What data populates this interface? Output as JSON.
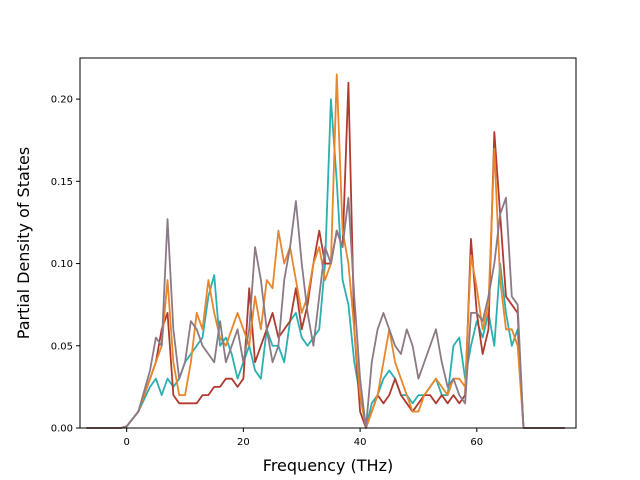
{
  "chart_data": {
    "type": "line",
    "title": "",
    "xlabel": "Frequency (THz)",
    "ylabel": "Partial Density of States",
    "xlim": [
      -8,
      77
    ],
    "ylim": [
      0,
      0.225
    ],
    "xticks": [
      0,
      20,
      40,
      60
    ],
    "yticks": [
      0.0,
      0.05,
      0.1,
      0.15,
      0.2
    ],
    "ytick_labels": [
      "0.00",
      "0.05",
      "0.10",
      "0.15",
      "0.20"
    ],
    "grid": false,
    "legend": "none",
    "series": [
      {
        "color": "#2ab0b0",
        "x": [
          -6.8,
          -1,
          0,
          2,
          4,
          5,
          6,
          7,
          8,
          9,
          10,
          11,
          12,
          13,
          14,
          15,
          16,
          17,
          18,
          19,
          20,
          21,
          22,
          23,
          24,
          25,
          26,
          27,
          28,
          29,
          30,
          31,
          32,
          33,
          34,
          35,
          36,
          37,
          38,
          39,
          40,
          41,
          42,
          43,
          44,
          45,
          46,
          47,
          48,
          49,
          50,
          51,
          52,
          53,
          54,
          55,
          56,
          57,
          58,
          59,
          60,
          61,
          62,
          63,
          64,
          65,
          66,
          67,
          68,
          70,
          75
        ],
        "y": [
          0,
          0,
          0.001,
          0.01,
          0.025,
          0.03,
          0.02,
          0.03,
          0.025,
          0.03,
          0.04,
          0.045,
          0.05,
          0.055,
          0.08,
          0.093,
          0.05,
          0.055,
          0.045,
          0.03,
          0.04,
          0.05,
          0.035,
          0.03,
          0.06,
          0.05,
          0.05,
          0.04,
          0.065,
          0.07,
          0.055,
          0.05,
          0.055,
          0.06,
          0.1,
          0.2,
          0.15,
          0.09,
          0.075,
          0.04,
          0.02,
          0,
          0.015,
          0.02,
          0.03,
          0.035,
          0.03,
          0.02,
          0.02,
          0.015,
          0.02,
          0.02,
          0.025,
          0.03,
          0.02,
          0.02,
          0.05,
          0.055,
          0.03,
          0.05,
          0.065,
          0.055,
          0.07,
          0.05,
          0.1,
          0.07,
          0.05,
          0.06,
          0,
          0,
          0
        ]
      },
      {
        "color": "#b03a2e",
        "x": [
          -6.8,
          -1,
          0,
          2,
          4,
          5,
          6,
          7,
          8,
          9,
          10,
          11,
          12,
          13,
          14,
          15,
          16,
          17,
          18,
          19,
          20,
          21,
          22,
          23,
          24,
          25,
          26,
          27,
          28,
          29,
          30,
          31,
          32,
          33,
          34,
          35,
          36,
          37,
          38,
          39,
          40,
          41,
          42,
          43,
          44,
          45,
          46,
          47,
          48,
          49,
          50,
          51,
          52,
          53,
          54,
          55,
          56,
          57,
          58,
          59,
          60,
          61,
          62,
          63,
          64,
          65,
          66,
          67,
          68,
          70,
          75
        ],
        "y": [
          0,
          0,
          0.001,
          0.01,
          0.03,
          0.04,
          0.06,
          0.07,
          0.02,
          0.015,
          0.015,
          0.015,
          0.015,
          0.02,
          0.02,
          0.025,
          0.025,
          0.03,
          0.03,
          0.025,
          0.03,
          0.085,
          0.04,
          0.05,
          0.06,
          0.07,
          0.055,
          0.06,
          0.065,
          0.085,
          0.06,
          0.075,
          0.1,
          0.12,
          0.1,
          0.1,
          0.12,
          0.11,
          0.21,
          0.06,
          0.01,
          0,
          0.01,
          0.02,
          0.015,
          0.02,
          0.03,
          0.02,
          0.015,
          0.01,
          0.015,
          0.02,
          0.02,
          0.015,
          0.02,
          0.015,
          0.02,
          0.015,
          0.02,
          0.115,
          0.07,
          0.045,
          0.06,
          0.18,
          0.13,
          0.08,
          0.075,
          0.07,
          0,
          0,
          0
        ]
      },
      {
        "color": "#e8862a",
        "x": [
          -6.8,
          -1,
          0,
          2,
          4,
          5,
          6,
          7,
          8,
          9,
          10,
          11,
          12,
          13,
          14,
          15,
          16,
          17,
          18,
          19,
          20,
          21,
          22,
          23,
          24,
          25,
          26,
          27,
          28,
          29,
          30,
          31,
          32,
          33,
          34,
          35,
          36,
          37,
          38,
          39,
          40,
          41,
          42,
          43,
          44,
          45,
          46,
          47,
          48,
          49,
          50,
          51,
          52,
          53,
          54,
          55,
          56,
          57,
          58,
          59,
          60,
          61,
          62,
          63,
          64,
          65,
          66,
          67,
          68,
          70,
          75
        ],
        "y": [
          0,
          0,
          0.001,
          0.01,
          0.03,
          0.04,
          0.05,
          0.09,
          0.04,
          0.02,
          0.02,
          0.04,
          0.07,
          0.06,
          0.09,
          0.07,
          0.055,
          0.05,
          0.06,
          0.07,
          0.06,
          0.05,
          0.08,
          0.06,
          0.09,
          0.085,
          0.12,
          0.1,
          0.11,
          0.09,
          0.07,
          0.08,
          0.1,
          0.11,
          0.09,
          0.1,
          0.215,
          0.12,
          0.1,
          0.06,
          0.02,
          0,
          0.01,
          0.02,
          0.04,
          0.06,
          0.04,
          0.03,
          0.02,
          0.01,
          0.01,
          0.02,
          0.025,
          0.03,
          0.025,
          0.02,
          0.03,
          0.03,
          0.025,
          0.105,
          0.085,
          0.06,
          0.075,
          0.17,
          0.09,
          0.06,
          0.06,
          0.05,
          0,
          0,
          0
        ]
      },
      {
        "color": "#8b7a86",
        "x": [
          -6.8,
          -1,
          0,
          2,
          4,
          5,
          6,
          7,
          8,
          9,
          10,
          11,
          12,
          13,
          14,
          15,
          16,
          17,
          18,
          19,
          20,
          21,
          22,
          23,
          24,
          25,
          26,
          27,
          28,
          29,
          30,
          31,
          32,
          33,
          34,
          35,
          36,
          37,
          38,
          39,
          40,
          41,
          42,
          43,
          44,
          45,
          46,
          47,
          48,
          49,
          50,
          51,
          52,
          53,
          54,
          55,
          56,
          57,
          58,
          59,
          60,
          61,
          62,
          63,
          64,
          65,
          66,
          67,
          68,
          70,
          75
        ],
        "y": [
          0,
          0,
          0.001,
          0.01,
          0.035,
          0.055,
          0.05,
          0.127,
          0.06,
          0.03,
          0.04,
          0.065,
          0.06,
          0.05,
          0.045,
          0.04,
          0.065,
          0.04,
          0.05,
          0.06,
          0.04,
          0.06,
          0.11,
          0.09,
          0.06,
          0.04,
          0.05,
          0.09,
          0.11,
          0.138,
          0.1,
          0.07,
          0.05,
          0.08,
          0.11,
          0.1,
          0.12,
          0.11,
          0.14,
          0.08,
          0.03,
          0,
          0.04,
          0.06,
          0.07,
          0.06,
          0.05,
          0.045,
          0.06,
          0.05,
          0.03,
          0.04,
          0.05,
          0.06,
          0.04,
          0.025,
          0.03,
          0.02,
          0.015,
          0.07,
          0.07,
          0.065,
          0.08,
          0.1,
          0.13,
          0.14,
          0.08,
          0.075,
          0,
          0,
          0
        ]
      }
    ]
  }
}
